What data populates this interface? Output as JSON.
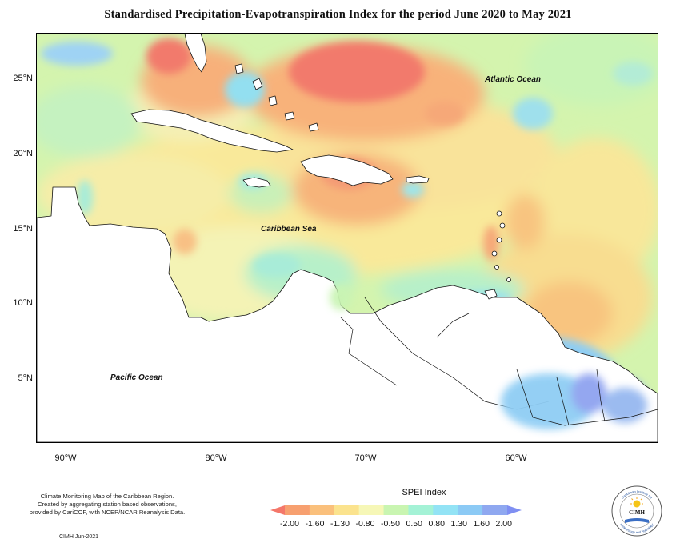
{
  "title": "Standardised Precipitation-Evapotranspiration Index for the period June 2020 to May 2021",
  "latitude_labels": [
    "25°N",
    "20°N",
    "15°N",
    "10°N",
    "5°N"
  ],
  "longitude_labels": [
    "90°W",
    "80°W",
    "70°W",
    "60°W"
  ],
  "ocean_labels": {
    "atlantic": "Atlantic Ocean",
    "caribbean": "Caribbean Sea",
    "pacific": "Pacific Ocean"
  },
  "credits": {
    "line1": "Climate Monitoring Map of the Caribbean Region.",
    "line2": "Created by aggregating station based observations,",
    "line3": "provided by CariCOF, with NCEP/NCAR Reanalysis Data.",
    "stamp": "CIMH  Jun-2021"
  },
  "legend": {
    "title": "SPEI Index",
    "ticks": [
      "-2.00",
      "-1.60",
      "-1.30",
      "-0.80",
      "-0.50",
      "0.50",
      "0.80",
      "1.30",
      "1.60",
      "2.00"
    ],
    "colors": [
      "#f4776a",
      "#f7a070",
      "#fac07c",
      "#fbe38e",
      "#f6f7b7",
      "#c9f5b1",
      "#a4f2d6",
      "#93e3f5",
      "#8ccaf5",
      "#8fa8f0",
      "#7f8ff2"
    ]
  },
  "logo": {
    "name": "CIMH",
    "arc_top": "Caribbean Institute for",
    "arc_bottom": "Meteorology and Hydrology"
  }
}
